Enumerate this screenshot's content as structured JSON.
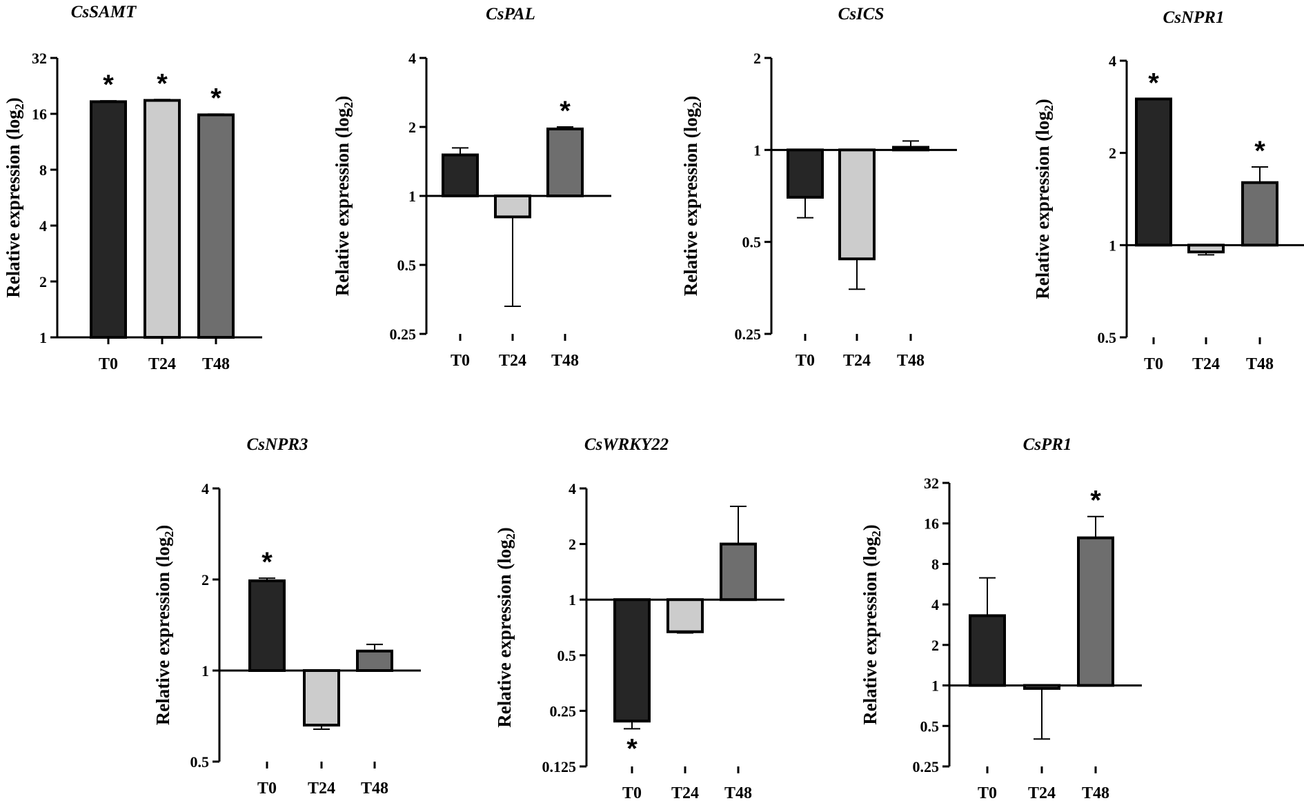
{
  "figure": {
    "y_axis_label_main": "Relative expression (log",
    "y_axis_label_sub": "2",
    "y_axis_label_end": ")"
  },
  "colors": {
    "T0": "#262626",
    "T24": "#cccccc",
    "T48": "#6e6e6e",
    "axis": "#000000"
  },
  "chart_data": [
    {
      "type": "bar",
      "title": "CsSAMT",
      "scale": "log2",
      "baseline": 1,
      "ylim": [
        1,
        32
      ],
      "ticks": [
        1,
        2,
        4,
        8,
        16,
        32
      ],
      "tick_labels": [
        "1",
        "2",
        "4",
        "8",
        "16",
        "32"
      ],
      "categories": [
        "T0",
        "T24",
        "T48"
      ],
      "values": [
        18.6,
        18.9,
        15.8
      ],
      "err_upper": [
        18.8,
        19.1,
        15.95
      ],
      "significant": [
        "*",
        "*",
        "*"
      ]
    },
    {
      "type": "bar",
      "title": "CsPAL",
      "scale": "log2",
      "baseline": 1,
      "ylim": [
        0.25,
        4
      ],
      "ticks": [
        0.25,
        0.5,
        1,
        2,
        4
      ],
      "tick_labels": [
        "0.25",
        "0.5",
        "1",
        "2",
        "4"
      ],
      "categories": [
        "T0",
        "T24",
        "T48"
      ],
      "values": [
        1.51,
        0.81,
        1.96
      ],
      "err_upper": [
        1.62,
        0.81,
        2.0
      ],
      "err_lower": [
        1.51,
        0.33,
        1.96
      ],
      "significant": [
        "",
        "",
        "*"
      ]
    },
    {
      "type": "bar",
      "title": "CsICS",
      "scale": "log2",
      "baseline": 1,
      "ylim": [
        0.25,
        2
      ],
      "ticks": [
        0.25,
        0.5,
        1,
        2
      ],
      "tick_labels": [
        "0.25",
        "0.5",
        "1",
        "2"
      ],
      "categories": [
        "T0",
        "T24",
        "T48"
      ],
      "values": [
        0.7,
        0.44,
        1.02
      ],
      "err_upper": [
        0.7,
        0.44,
        1.07
      ],
      "err_lower": [
        0.6,
        0.35,
        1.02
      ],
      "significant": [
        "",
        "",
        ""
      ]
    },
    {
      "type": "bar",
      "title": "CsNPR1",
      "scale": "log2",
      "baseline": 1,
      "ylim": [
        0.5,
        4
      ],
      "ticks": [
        0.5,
        1,
        2,
        4
      ],
      "tick_labels": [
        "0.5",
        "1",
        "2",
        "4"
      ],
      "categories": [
        "T0",
        "T24",
        "T48"
      ],
      "values": [
        3.0,
        0.95,
        1.6
      ],
      "err_upper": [
        3.0,
        0.95,
        1.8
      ],
      "err_lower": [
        3.0,
        0.93,
        1.6
      ],
      "significant": [
        "*",
        "",
        "*"
      ]
    },
    {
      "type": "bar",
      "title": "CsNPR3",
      "scale": "log2",
      "baseline": 1,
      "ylim": [
        0.5,
        4
      ],
      "ticks": [
        0.5,
        1,
        2,
        4
      ],
      "tick_labels": [
        "0.5",
        "1",
        "2",
        "4"
      ],
      "categories": [
        "T0",
        "T24",
        "T48"
      ],
      "values": [
        1.98,
        0.66,
        1.16
      ],
      "err_upper": [
        2.02,
        0.66,
        1.22
      ],
      "err_lower": [
        1.98,
        0.64,
        1.16
      ],
      "significant": [
        "*",
        "",
        ""
      ]
    },
    {
      "type": "bar",
      "title": "CsWRKY22",
      "scale": "log2",
      "baseline": 1,
      "ylim": [
        0.125,
        4
      ],
      "ticks": [
        0.125,
        0.25,
        0.5,
        1,
        2,
        4
      ],
      "tick_labels": [
        "0.125",
        "0.25",
        "0.5",
        "1",
        "2",
        "4"
      ],
      "categories": [
        "T0",
        "T24",
        "T48"
      ],
      "values": [
        0.22,
        0.67,
        2.0
      ],
      "err_upper": [
        0.22,
        0.67,
        3.2
      ],
      "err_lower": [
        0.2,
        0.66,
        2.0
      ],
      "significant": [
        "*",
        "",
        ""
      ]
    },
    {
      "type": "bar",
      "title": "CsPR1",
      "scale": "log2",
      "baseline": 1,
      "ylim": [
        0.25,
        32
      ],
      "ticks": [
        0.25,
        0.5,
        1,
        2,
        4,
        8,
        16,
        32
      ],
      "tick_labels": [
        "0.25",
        "0.5",
        "1",
        "2",
        "4",
        "8",
        "16",
        "32"
      ],
      "categories": [
        "T0",
        "T24",
        "T48"
      ],
      "values": [
        3.3,
        0.95,
        12.5
      ],
      "err_upper": [
        6.3,
        0.95,
        18.0
      ],
      "err_lower": [
        3.3,
        0.4,
        12.5
      ],
      "significant": [
        "",
        "",
        "*"
      ]
    }
  ]
}
